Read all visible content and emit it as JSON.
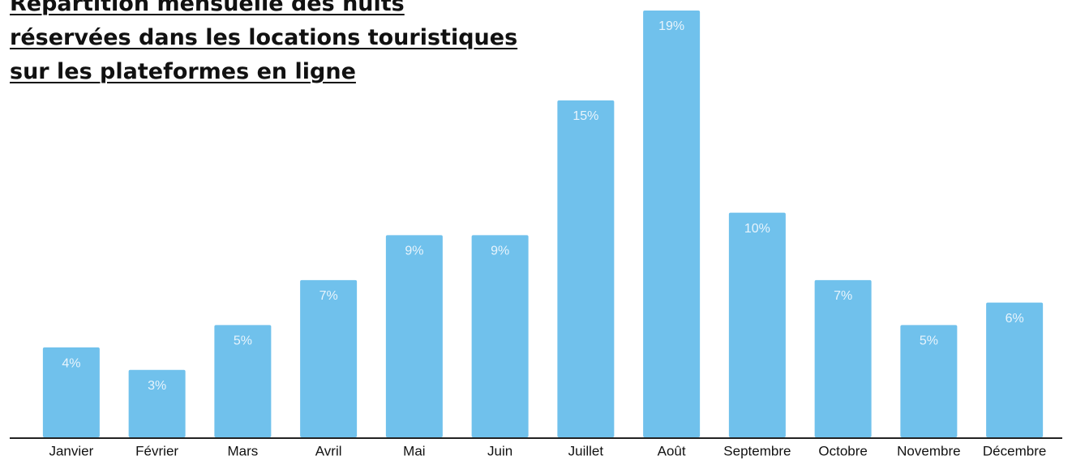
{
  "chart_data": {
    "type": "bar",
    "title": "Répartition mensuelle des nuits réservées dans les locations touristiques sur les plateformes en ligne",
    "categories": [
      "Janvier",
      "Février",
      "Mars",
      "Avril",
      "Mai",
      "Juin",
      "Juillet",
      "Août",
      "Septembre",
      "Octobre",
      "Novembre",
      "Décembre"
    ],
    "values": [
      4,
      3,
      5,
      7,
      9,
      9,
      15,
      19,
      10,
      7,
      5,
      6
    ],
    "value_labels": [
      "4%",
      "3%",
      "5%",
      "7%",
      "9%",
      "9%",
      "15%",
      "19%",
      "10%",
      "7%",
      "5%",
      "6%"
    ],
    "color": "#70c1ec",
    "ylim": [
      0,
      19
    ]
  }
}
